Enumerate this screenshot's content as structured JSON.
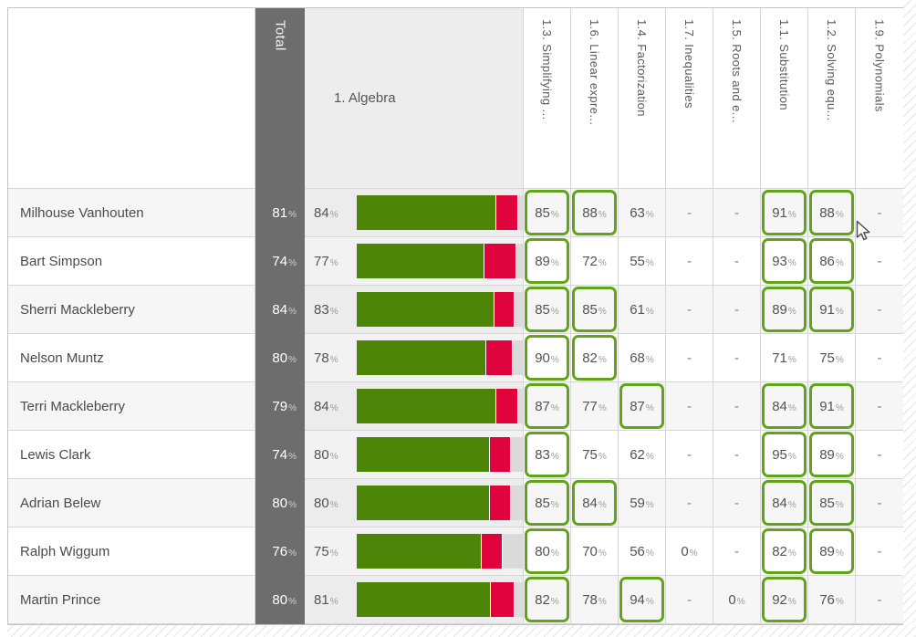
{
  "header": {
    "total": "Total",
    "algebra": "1. Algebra",
    "topics": [
      "1.3. Simplifying ...",
      "1.6. Linear expre...",
      "1.4. Factorization",
      "1.7. Inequalities",
      "1.5. Roots and e...",
      "1.1. Substitution",
      "1.2. Solving equ...",
      "1.9. Polynomials"
    ]
  },
  "rows": [
    {
      "name": "Milhouse Vanhouten",
      "total": "81",
      "algebra": {
        "score": "84",
        "bar": {
          "green": 84,
          "red": 13
        }
      },
      "topics": [
        {
          "v": "85",
          "boxed": true
        },
        {
          "v": "88",
          "boxed": true
        },
        {
          "v": "63",
          "boxed": false
        },
        {
          "v": "-",
          "boxed": false
        },
        {
          "v": "-",
          "boxed": false
        },
        {
          "v": "91",
          "boxed": true
        },
        {
          "v": "88",
          "boxed": true
        },
        {
          "v": "-",
          "boxed": false
        }
      ]
    },
    {
      "name": "Bart Simpson",
      "total": "74",
      "algebra": {
        "score": "77",
        "bar": {
          "green": 77,
          "red": 19
        }
      },
      "topics": [
        {
          "v": "89",
          "boxed": true
        },
        {
          "v": "72",
          "boxed": false
        },
        {
          "v": "55",
          "boxed": false
        },
        {
          "v": "-",
          "boxed": false
        },
        {
          "v": "-",
          "boxed": false
        },
        {
          "v": "93",
          "boxed": true
        },
        {
          "v": "86",
          "boxed": true
        },
        {
          "v": "-",
          "boxed": false
        }
      ]
    },
    {
      "name": "Sherri Mackleberry",
      "total": "84",
      "algebra": {
        "score": "83",
        "bar": {
          "green": 83,
          "red": 12
        }
      },
      "topics": [
        {
          "v": "85",
          "boxed": true
        },
        {
          "v": "85",
          "boxed": true
        },
        {
          "v": "61",
          "boxed": false
        },
        {
          "v": "-",
          "boxed": false
        },
        {
          "v": "-",
          "boxed": false
        },
        {
          "v": "89",
          "boxed": true
        },
        {
          "v": "91",
          "boxed": true
        },
        {
          "v": "-",
          "boxed": false
        }
      ]
    },
    {
      "name": "Nelson Muntz",
      "total": "80",
      "algebra": {
        "score": "78",
        "bar": {
          "green": 78,
          "red": 16
        }
      },
      "topics": [
        {
          "v": "90",
          "boxed": true
        },
        {
          "v": "82",
          "boxed": true
        },
        {
          "v": "68",
          "boxed": false
        },
        {
          "v": "-",
          "boxed": false
        },
        {
          "v": "-",
          "boxed": false
        },
        {
          "v": "71",
          "boxed": false
        },
        {
          "v": "75",
          "boxed": false
        },
        {
          "v": "-",
          "boxed": false
        }
      ]
    },
    {
      "name": "Terri Mackleberry",
      "total": "79",
      "algebra": {
        "score": "84",
        "bar": {
          "green": 84,
          "red": 13
        }
      },
      "topics": [
        {
          "v": "87",
          "boxed": true
        },
        {
          "v": "77",
          "boxed": false
        },
        {
          "v": "87",
          "boxed": true
        },
        {
          "v": "-",
          "boxed": false
        },
        {
          "v": "-",
          "boxed": false
        },
        {
          "v": "84",
          "boxed": true
        },
        {
          "v": "91",
          "boxed": true
        },
        {
          "v": "-",
          "boxed": false
        }
      ]
    },
    {
      "name": "Lewis Clark",
      "total": "74",
      "algebra": {
        "score": "80",
        "bar": {
          "green": 80,
          "red": 13
        }
      },
      "topics": [
        {
          "v": "83",
          "boxed": true
        },
        {
          "v": "75",
          "boxed": false
        },
        {
          "v": "62",
          "boxed": false
        },
        {
          "v": "-",
          "boxed": false
        },
        {
          "v": "-",
          "boxed": false
        },
        {
          "v": "95",
          "boxed": true
        },
        {
          "v": "89",
          "boxed": true
        },
        {
          "v": "-",
          "boxed": false
        }
      ]
    },
    {
      "name": "Adrian Belew",
      "total": "80",
      "algebra": {
        "score": "80",
        "bar": {
          "green": 80,
          "red": 13
        }
      },
      "topics": [
        {
          "v": "85",
          "boxed": true
        },
        {
          "v": "84",
          "boxed": true
        },
        {
          "v": "59",
          "boxed": false
        },
        {
          "v": "-",
          "boxed": false
        },
        {
          "v": "-",
          "boxed": false
        },
        {
          "v": "84",
          "boxed": true
        },
        {
          "v": "85",
          "boxed": true
        },
        {
          "v": "-",
          "boxed": false
        }
      ]
    },
    {
      "name": "Ralph Wiggum",
      "total": "76",
      "algebra": {
        "score": "75",
        "bar": {
          "green": 75,
          "red": 13
        }
      },
      "topics": [
        {
          "v": "80",
          "boxed": true
        },
        {
          "v": "70",
          "boxed": false
        },
        {
          "v": "56",
          "boxed": false
        },
        {
          "v": "0",
          "boxed": false
        },
        {
          "v": "-",
          "boxed": false
        },
        {
          "v": "82",
          "boxed": true
        },
        {
          "v": "89",
          "boxed": true
        },
        {
          "v": "-",
          "boxed": false
        }
      ]
    },
    {
      "name": "Martin Prince",
      "total": "80",
      "algebra": {
        "score": "81",
        "bar": {
          "green": 81,
          "red": 14
        }
      },
      "topics": [
        {
          "v": "82",
          "boxed": true
        },
        {
          "v": "78",
          "boxed": false
        },
        {
          "v": "94",
          "boxed": true
        },
        {
          "v": "-",
          "boxed": false
        },
        {
          "v": "0",
          "boxed": false
        },
        {
          "v": "92",
          "boxed": true
        },
        {
          "v": "76",
          "boxed": false
        },
        {
          "v": "-",
          "boxed": false
        }
      ]
    }
  ],
  "percent_suffix": "%",
  "colors": {
    "bar_green": "#4d8508",
    "bar_red": "#e0043e",
    "bar_track": "#dadada",
    "box_green": "#61a419",
    "total_bg": "#6d6d6d",
    "row_alt": "#f6f6f6"
  }
}
